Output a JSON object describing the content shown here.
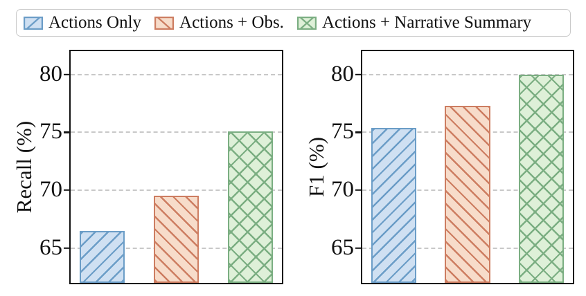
{
  "figure": {
    "background": "#ffffff",
    "axis_color": "#111111",
    "grid_color": "#c8c8c8"
  },
  "legend": {
    "position": "top",
    "items": [
      {
        "label": "Actions Only",
        "fill": "#cfe0f2",
        "edge": "#6b9dc7",
        "hatch": "/"
      },
      {
        "label": "Actions + Obs.",
        "fill": "#f7dcca",
        "edge": "#cd7d61",
        "hatch": "\\"
      },
      {
        "label": "Actions + Narrative Summary",
        "fill": "#def0d8",
        "edge": "#7bae82",
        "hatch": "x"
      }
    ]
  },
  "chart_data": [
    {
      "type": "bar",
      "title": "",
      "xlabel": "",
      "ylabel": "Recall (%)",
      "categories": [
        "Actions Only",
        "Actions + Obs.",
        "Actions + Narrative Summary"
      ],
      "values": [
        66.5,
        69.5,
        75.1
      ],
      "ylim": [
        62,
        82
      ],
      "yticks": [
        65,
        70,
        75,
        80
      ],
      "grid": "horizontal-dashed",
      "legend_position": "above-figure-shared"
    },
    {
      "type": "bar",
      "title": "",
      "xlabel": "",
      "ylabel": "F1 (%)",
      "categories": [
        "Actions Only",
        "Actions + Obs.",
        "Actions + Narrative Summary"
      ],
      "values": [
        75.4,
        77.3,
        80.0
      ],
      "ylim": [
        62,
        82
      ],
      "yticks": [
        65,
        70,
        75,
        80
      ],
      "grid": "horizontal-dashed",
      "legend_position": "above-figure-shared"
    }
  ]
}
